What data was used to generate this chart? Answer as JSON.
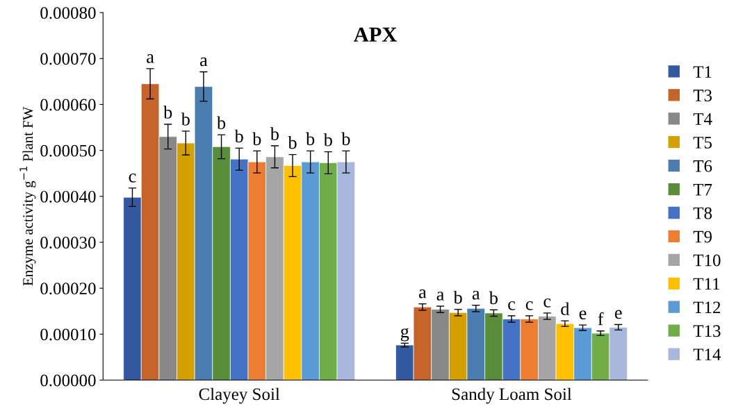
{
  "chart_data": {
    "type": "bar",
    "title": "APX",
    "ylabel": "Enzyme activity g$^{−1}$ Plant FW",
    "categories": [
      "Clayey Soil",
      "Sandy Loam Soil"
    ],
    "ylim": [
      0,
      0.0008
    ],
    "yticks": [
      {
        "value": 0,
        "label": "0.00000"
      },
      {
        "value": 0.0001,
        "label": "0.00010"
      },
      {
        "value": 0.0002,
        "label": "0.00020"
      },
      {
        "value": 0.0003,
        "label": "0.00030"
      },
      {
        "value": 0.0004,
        "label": "0.00040"
      },
      {
        "value": 0.0005,
        "label": "0.00050"
      },
      {
        "value": 0.0006,
        "label": "0.00060"
      },
      {
        "value": 0.0007,
        "label": "0.00070"
      },
      {
        "value": 0.0008,
        "label": "0.00080"
      }
    ],
    "grid": false,
    "legend": "right",
    "series": [
      {
        "name": "T1",
        "color": "#335aa0",
        "values": [
          0.000398,
          7.63e-05
        ],
        "errors": [
          2e-05,
          4e-06
        ],
        "value_labels": [
          "c",
          "g"
        ]
      },
      {
        "name": "T3",
        "color": "#c5632b",
        "values": [
          0.000645,
          0.000159
        ],
        "errors": [
          3.3e-05,
          7e-06
        ],
        "value_labels": [
          "a",
          "a"
        ]
      },
      {
        "name": "T4",
        "color": "#888888",
        "values": [
          0.00053,
          0.000154
        ],
        "errors": [
          2.7e-05,
          7e-06
        ],
        "value_labels": [
          "b",
          "a"
        ]
      },
      {
        "name": "T5",
        "color": "#d4a000",
        "values": [
          0.000516,
          0.000147
        ],
        "errors": [
          2.6e-05,
          7e-06
        ],
        "value_labels": [
          "b",
          "b"
        ]
      },
      {
        "name": "T6",
        "color": "#4a7eb0",
        "values": [
          0.000639,
          0.000156
        ],
        "errors": [
          3.2e-05,
          7e-06
        ],
        "value_labels": [
          "a",
          "a"
        ]
      },
      {
        "name": "T7",
        "color": "#5a8d3a",
        "values": [
          0.000508,
          0.000146
        ],
        "errors": [
          2.6e-05,
          7e-06
        ],
        "value_labels": [
          "b",
          "b"
        ]
      },
      {
        "name": "T8",
        "color": "#4472c4",
        "values": [
          0.000481,
          0.000133
        ],
        "errors": [
          2.4e-05,
          7e-06
        ],
        "value_labels": [
          "b",
          "c"
        ]
      },
      {
        "name": "T9",
        "color": "#ed7d31",
        "values": [
          0.000475,
          0.000133
        ],
        "errors": [
          2.4e-05,
          7e-06
        ],
        "value_labels": [
          "b",
          "c"
        ]
      },
      {
        "name": "T10",
        "color": "#a5a5a5",
        "values": [
          0.000486,
          0.000139
        ],
        "errors": [
          2.4e-05,
          7e-06
        ],
        "value_labels": [
          "b",
          "c"
        ]
      },
      {
        "name": "T11",
        "color": "#ffc000",
        "values": [
          0.000467,
          0.000123
        ],
        "errors": [
          2.4e-05,
          6e-06
        ],
        "value_labels": [
          "b",
          "d"
        ]
      },
      {
        "name": "T12",
        "color": "#5b9bd5",
        "values": [
          0.000475,
          0.000114
        ],
        "errors": [
          2.4e-05,
          6e-06
        ],
        "value_labels": [
          "b",
          "e"
        ]
      },
      {
        "name": "T13",
        "color": "#70ad47",
        "values": [
          0.000473,
          0.000102
        ],
        "errors": [
          2.4e-05,
          5e-06
        ],
        "value_labels": [
          "b",
          "f"
        ]
      },
      {
        "name": "T14",
        "color": "#a9b7dc",
        "values": [
          0.000475,
          0.000115
        ],
        "errors": [
          2.4e-05,
          6e-06
        ],
        "value_labels": [
          "b",
          "e"
        ]
      }
    ]
  }
}
